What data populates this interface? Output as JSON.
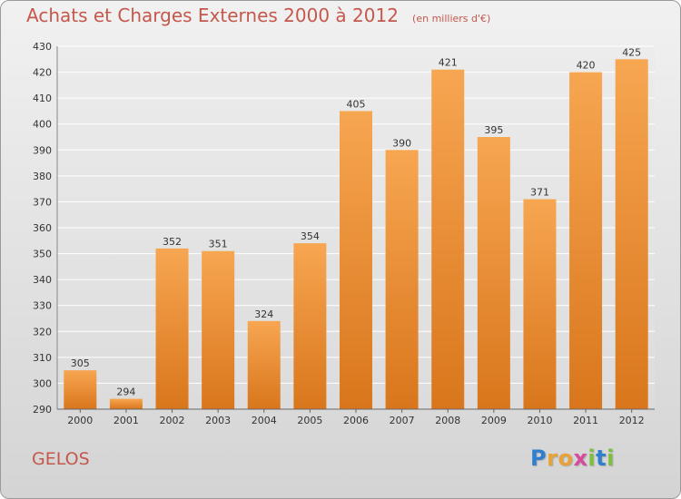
{
  "title": "Achats et Charges Externes 2000 à 2012",
  "subtitle": "(en milliers d'€)",
  "location": "GELOS",
  "brand": {
    "letters": [
      "P",
      "r",
      "o",
      "x",
      "i",
      "t",
      "i"
    ],
    "colors": [
      "#2f7fcf",
      "#e8a23a",
      "#e8a23a",
      "#d84a9b",
      "#7fbf3f",
      "#2f7fcf",
      "#7fbf3f"
    ]
  },
  "colors": {
    "bar_top": "#f7a651",
    "bar_bottom": "#d9761c",
    "title": "#c4584c",
    "grid": "#ffffff"
  },
  "chart_data": {
    "type": "bar",
    "title": "Achats et Charges Externes 2000 à 2012",
    "subtitle": "(en milliers d'€)",
    "categories": [
      "2000",
      "2001",
      "2002",
      "2003",
      "2004",
      "2005",
      "2006",
      "2007",
      "2008",
      "2009",
      "2010",
      "2011",
      "2012"
    ],
    "values": [
      305,
      294,
      352,
      351,
      324,
      354,
      405,
      390,
      421,
      395,
      371,
      420,
      425
    ],
    "ylim": [
      290,
      430
    ],
    "yticks": [
      290,
      300,
      310,
      320,
      330,
      340,
      350,
      360,
      370,
      380,
      390,
      400,
      410,
      420,
      430
    ],
    "grid": true,
    "xlabel": "",
    "ylabel": ""
  }
}
